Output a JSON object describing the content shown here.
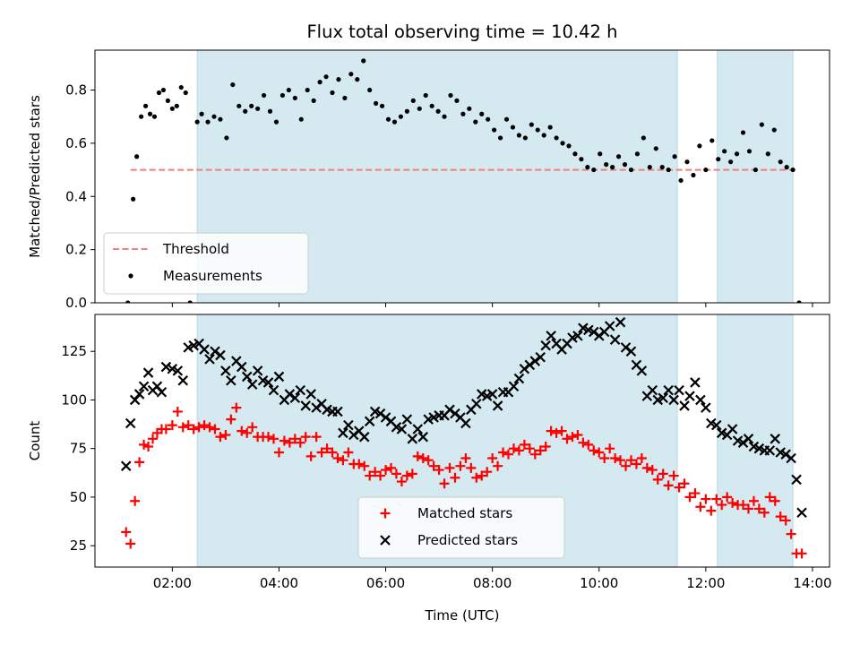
{
  "figure": {
    "title": "Flux total observing time = 10.42 h",
    "xlabel": "Time (UTC)"
  },
  "chart_data": [
    {
      "type": "scatter",
      "title": "Flux total observing time = 10.42 h",
      "xlabel": "",
      "ylabel": "Matched/Predicted stars",
      "xlim_hours": [
        0.55,
        14.32
      ],
      "ylim": [
        0,
        0.95
      ],
      "yticks": [
        0.0,
        0.2,
        0.4,
        0.6,
        0.8
      ],
      "ytick_labels": [
        "0.0",
        "0.2",
        "0.4",
        "0.6",
        "0.8"
      ],
      "shaded_intervals": [
        [
          "02:28",
          "11:28"
        ],
        [
          "12:13",
          "13:38"
        ]
      ],
      "shade_color": "#d4eaf0",
      "legend_position": "lower-left",
      "series": [
        {
          "name": "Threshold",
          "kind": "line",
          "style": "dashed",
          "color": "#f07f7f",
          "x": [
            "01:13",
            "13:38"
          ],
          "y": [
            0.5,
            0.5
          ]
        },
        {
          "name": "Measurements",
          "kind": "scatter",
          "marker": "dot",
          "color": "#000000",
          "x": [
            "01:10",
            "01:16",
            "01:20",
            "01:25",
            "01:30",
            "01:35",
            "01:40",
            "01:45",
            "01:50",
            "01:55",
            "02:00",
            "02:05",
            "02:10",
            "02:15",
            "02:20",
            "02:28",
            "02:33",
            "02:40",
            "02:47",
            "02:54",
            "03:01",
            "03:08",
            "03:15",
            "03:22",
            "03:29",
            "03:36",
            "03:43",
            "03:50",
            "03:57",
            "04:04",
            "04:11",
            "04:18",
            "04:25",
            "04:32",
            "04:39",
            "04:46",
            "04:53",
            "05:00",
            "05:07",
            "05:14",
            "05:21",
            "05:28",
            "05:35",
            "05:42",
            "05:49",
            "05:56",
            "06:03",
            "06:10",
            "06:17",
            "06:24",
            "06:31",
            "06:38",
            "06:45",
            "06:52",
            "06:59",
            "07:06",
            "07:13",
            "07:20",
            "07:27",
            "07:34",
            "07:41",
            "07:48",
            "07:55",
            "08:02",
            "08:09",
            "08:16",
            "08:23",
            "08:30",
            "08:37",
            "08:44",
            "08:51",
            "08:58",
            "09:05",
            "09:12",
            "09:19",
            "09:26",
            "09:33",
            "09:40",
            "09:47",
            "09:54",
            "10:01",
            "10:08",
            "10:15",
            "10:22",
            "10:29",
            "10:36",
            "10:43",
            "10:50",
            "10:57",
            "11:04",
            "11:11",
            "11:18",
            "11:25",
            "11:32",
            "11:39",
            "11:46",
            "11:53",
            "12:00",
            "12:07",
            "12:14",
            "12:21",
            "12:28",
            "12:35",
            "12:42",
            "12:49",
            "12:56",
            "13:03",
            "13:10",
            "13:17",
            "13:24",
            "13:31",
            "13:38",
            "13:45"
          ],
          "y": [
            0.0,
            0.39,
            0.55,
            0.7,
            0.74,
            0.71,
            0.7,
            0.79,
            0.8,
            0.76,
            0.73,
            0.74,
            0.81,
            0.79,
            0.0,
            0.68,
            0.71,
            0.68,
            0.7,
            0.69,
            0.62,
            0.82,
            0.74,
            0.72,
            0.74,
            0.73,
            0.78,
            0.72,
            0.68,
            0.78,
            0.8,
            0.77,
            0.69,
            0.8,
            0.76,
            0.83,
            0.85,
            0.79,
            0.84,
            0.77,
            0.86,
            0.84,
            0.91,
            0.8,
            0.75,
            0.74,
            0.69,
            0.68,
            0.7,
            0.72,
            0.76,
            0.73,
            0.78,
            0.74,
            0.72,
            0.7,
            0.78,
            0.76,
            0.71,
            0.73,
            0.68,
            0.71,
            0.69,
            0.65,
            0.62,
            0.69,
            0.66,
            0.63,
            0.62,
            0.67,
            0.65,
            0.63,
            0.66,
            0.62,
            0.6,
            0.59,
            0.56,
            0.54,
            0.51,
            0.5,
            0.56,
            0.52,
            0.51,
            0.55,
            0.52,
            0.5,
            0.56,
            0.62,
            0.51,
            0.58,
            0.51,
            0.5,
            0.55,
            0.46,
            0.53,
            0.48,
            0.59,
            0.5,
            0.61,
            0.54,
            0.57,
            0.53,
            0.56,
            0.64,
            0.57,
            0.5,
            0.67,
            0.56,
            0.65,
            0.53,
            0.51,
            0.5,
            0.0
          ]
        }
      ]
    },
    {
      "type": "scatter",
      "title": "",
      "xlabel": "Time (UTC)",
      "ylabel": "Count",
      "xlim_hours": [
        0.55,
        14.32
      ],
      "ylim": [
        14,
        144
      ],
      "xticks": [
        "02:00",
        "04:00",
        "06:00",
        "08:00",
        "10:00",
        "12:00",
        "14:00"
      ],
      "yticks": [
        25,
        50,
        75,
        100,
        125
      ],
      "shaded_intervals": [
        [
          "02:28",
          "11:28"
        ],
        [
          "12:13",
          "13:38"
        ]
      ],
      "shade_color": "#d4eaf0",
      "legend_position": "lower-center",
      "series": [
        {
          "name": "Matched stars",
          "marker": "plus",
          "color": "#ff0000",
          "x": [
            "01:08",
            "01:13",
            "01:18",
            "01:23",
            "01:28",
            "01:33",
            "01:38",
            "01:43",
            "01:48",
            "01:53",
            "02:00",
            "02:06",
            "02:12",
            "02:18",
            "02:24",
            "02:30",
            "02:36",
            "02:42",
            "02:48",
            "02:54",
            "03:00",
            "03:06",
            "03:12",
            "03:18",
            "03:24",
            "03:30",
            "03:36",
            "03:42",
            "03:48",
            "03:54",
            "04:00",
            "04:06",
            "04:12",
            "04:18",
            "04:24",
            "04:30",
            "04:36",
            "04:42",
            "04:48",
            "04:54",
            "05:00",
            "05:06",
            "05:12",
            "05:18",
            "05:24",
            "05:30",
            "05:36",
            "05:42",
            "05:48",
            "05:54",
            "06:00",
            "06:06",
            "06:12",
            "06:18",
            "06:24",
            "06:30",
            "06:36",
            "06:42",
            "06:48",
            "06:54",
            "07:00",
            "07:06",
            "07:12",
            "07:18",
            "07:24",
            "07:30",
            "07:36",
            "07:42",
            "07:48",
            "07:54",
            "08:00",
            "08:06",
            "08:12",
            "08:18",
            "08:24",
            "08:30",
            "08:36",
            "08:42",
            "08:48",
            "08:54",
            "09:00",
            "09:06",
            "09:12",
            "09:18",
            "09:24",
            "09:30",
            "09:36",
            "09:42",
            "09:48",
            "09:54",
            "10:00",
            "10:06",
            "10:12",
            "10:18",
            "10:24",
            "10:30",
            "10:36",
            "10:42",
            "10:48",
            "10:54",
            "11:00",
            "11:06",
            "11:12",
            "11:18",
            "11:24",
            "11:30",
            "11:36",
            "11:42",
            "11:48",
            "11:54",
            "12:00",
            "12:06",
            "12:12",
            "12:18",
            "12:24",
            "12:30",
            "12:36",
            "12:42",
            "12:48",
            "12:54",
            "13:00",
            "13:06",
            "13:12",
            "13:18",
            "13:24",
            "13:30",
            "13:36",
            "13:42",
            "13:48"
          ],
          "y": [
            32,
            26,
            48,
            68,
            77,
            76,
            80,
            83,
            85,
            85,
            87,
            94,
            86,
            87,
            85,
            86,
            87,
            86,
            85,
            81,
            82,
            90,
            96,
            84,
            83,
            86,
            81,
            81,
            81,
            80,
            73,
            79,
            78,
            80,
            78,
            81,
            71,
            81,
            73,
            75,
            73,
            70,
            69,
            73,
            67,
            67,
            66,
            61,
            63,
            61,
            64,
            65,
            62,
            58,
            61,
            62,
            71,
            70,
            69,
            66,
            64,
            57,
            65,
            60,
            66,
            70,
            65,
            60,
            61,
            63,
            70,
            66,
            73,
            72,
            75,
            74,
            77,
            75,
            72,
            74,
            76,
            84,
            83,
            84,
            80,
            81,
            82,
            78,
            77,
            74,
            73,
            70,
            75,
            70,
            69,
            66,
            69,
            67,
            70,
            65,
            64,
            59,
            62,
            56,
            61,
            55,
            57,
            50,
            52,
            45,
            49,
            43,
            49,
            46,
            50,
            47,
            46,
            46,
            44,
            48,
            44,
            42,
            50,
            48,
            40,
            38,
            31,
            21,
            21
          ]
        },
        {
          "name": "Predicted stars",
          "marker": "x",
          "color": "#000000",
          "x": [
            "01:08",
            "01:13",
            "01:18",
            "01:23",
            "01:28",
            "01:33",
            "01:38",
            "01:43",
            "01:48",
            "01:53",
            "02:00",
            "02:06",
            "02:12",
            "02:18",
            "02:24",
            "02:30",
            "02:36",
            "02:42",
            "02:48",
            "02:54",
            "03:00",
            "03:06",
            "03:12",
            "03:18",
            "03:24",
            "03:30",
            "03:36",
            "03:42",
            "03:48",
            "03:54",
            "04:00",
            "04:06",
            "04:12",
            "04:18",
            "04:24",
            "04:30",
            "04:36",
            "04:42",
            "04:48",
            "04:54",
            "05:00",
            "05:06",
            "05:12",
            "05:18",
            "05:24",
            "05:30",
            "05:36",
            "05:42",
            "05:48",
            "05:54",
            "06:00",
            "06:06",
            "06:12",
            "06:18",
            "06:24",
            "06:30",
            "06:36",
            "06:42",
            "06:48",
            "06:54",
            "07:00",
            "07:06",
            "07:12",
            "07:18",
            "07:24",
            "07:30",
            "07:36",
            "07:42",
            "07:48",
            "07:54",
            "08:00",
            "08:06",
            "08:12",
            "08:18",
            "08:24",
            "08:30",
            "08:36",
            "08:42",
            "08:48",
            "08:54",
            "09:00",
            "09:06",
            "09:12",
            "09:18",
            "09:24",
            "09:30",
            "09:36",
            "09:42",
            "09:48",
            "09:54",
            "10:00",
            "10:06",
            "10:12",
            "10:18",
            "10:24",
            "10:30",
            "10:36",
            "10:42",
            "10:48",
            "10:54",
            "11:00",
            "11:06",
            "11:12",
            "11:18",
            "11:24",
            "11:30",
            "11:36",
            "11:42",
            "11:48",
            "11:54",
            "12:00",
            "12:06",
            "12:12",
            "12:18",
            "12:24",
            "12:30",
            "12:36",
            "12:42",
            "12:48",
            "12:54",
            "13:00",
            "13:06",
            "13:12",
            "13:18",
            "13:24",
            "13:30",
            "13:36",
            "13:42",
            "13:48"
          ],
          "y": [
            66,
            88,
            100,
            103,
            107,
            114,
            105,
            107,
            104,
            117,
            116,
            115,
            110,
            127,
            128,
            129,
            126,
            121,
            125,
            123,
            115,
            110,
            120,
            117,
            112,
            108,
            115,
            110,
            109,
            105,
            112,
            100,
            103,
            101,
            105,
            97,
            103,
            96,
            98,
            95,
            94,
            94,
            83,
            87,
            82,
            84,
            81,
            89,
            94,
            93,
            91,
            89,
            86,
            85,
            90,
            80,
            85,
            81,
            90,
            91,
            92,
            92,
            95,
            93,
            91,
            88,
            95,
            98,
            103,
            102,
            103,
            97,
            104,
            104,
            107,
            111,
            116,
            118,
            120,
            122,
            128,
            133,
            129,
            126,
            129,
            132,
            133,
            137,
            136,
            135,
            133,
            135,
            138,
            131,
            140,
            127,
            125,
            118,
            115,
            102,
            105,
            100,
            101,
            105,
            100,
            105,
            97,
            102,
            109,
            100,
            96,
            88,
            87,
            83,
            82,
            85,
            79,
            78,
            80,
            76,
            75,
            74,
            74,
            80,
            73,
            72,
            70,
            59,
            42
          ]
        }
      ]
    }
  ]
}
